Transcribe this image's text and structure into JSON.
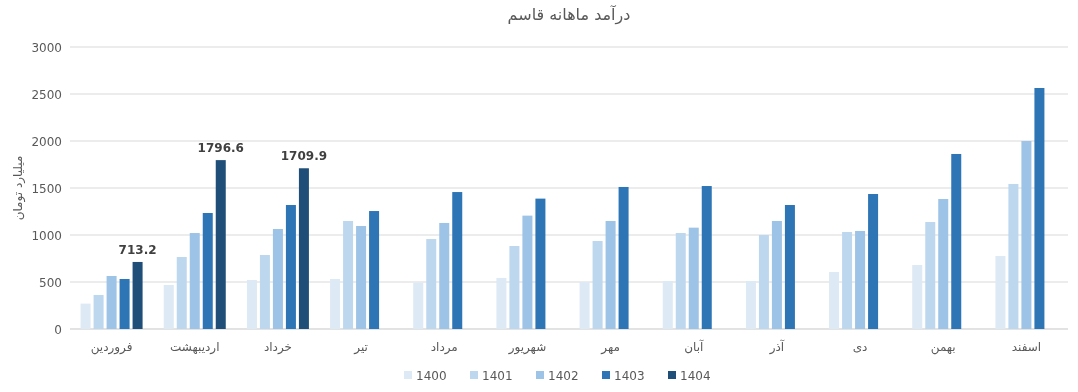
{
  "chart_data": {
    "type": "bar",
    "title": "درآمد ماهانه قاسم",
    "ylabel": "میلیارد تومان",
    "categories": [
      "فروردین",
      "اردیبهشت",
      "خرداد",
      "تیر",
      "مرداد",
      "شهریور",
      "مهر",
      "آبان",
      "آذر",
      "دی",
      "بهمن",
      "اسفند"
    ],
    "series": [
      {
        "name": "1400",
        "color": "#dde9f5",
        "values": [
          270,
          468,
          521,
          532,
          493,
          543,
          500,
          511,
          511,
          606,
          681,
          777
        ]
      },
      {
        "name": "1401",
        "color": "#bdd7ee",
        "values": [
          362,
          766,
          787,
          1149,
          957,
          883,
          936,
          1021,
          1000,
          1032,
          1138,
          1543
        ]
      },
      {
        "name": "1402",
        "color": "#9dc3e6",
        "values": [
          564,
          1021,
          1064,
          1096,
          1128,
          1206,
          1149,
          1078,
          1149,
          1043,
          1383,
          2000
        ]
      },
      {
        "name": "1403",
        "color": "#2e75b6",
        "values": [
          532,
          1234,
          1319,
          1255,
          1457,
          1387,
          1511,
          1521,
          1319,
          1436,
          1862,
          2564
        ]
      },
      {
        "name": "1404",
        "color": "#1f4e79",
        "values": [
          713.2,
          1796.6,
          1709.9,
          null,
          null,
          null,
          null,
          null,
          null,
          null,
          null,
          null
        ],
        "value_labels": [
          "713.2",
          "1796.6",
          "1709.9",
          null,
          null,
          null,
          null,
          null,
          null,
          null,
          null,
          null
        ]
      }
    ],
    "ylim": [
      0,
      3000
    ],
    "yticks": [
      0,
      500,
      1000,
      1500,
      2000,
      2500,
      3000
    ],
    "grid": "y",
    "legend": "bottom"
  }
}
